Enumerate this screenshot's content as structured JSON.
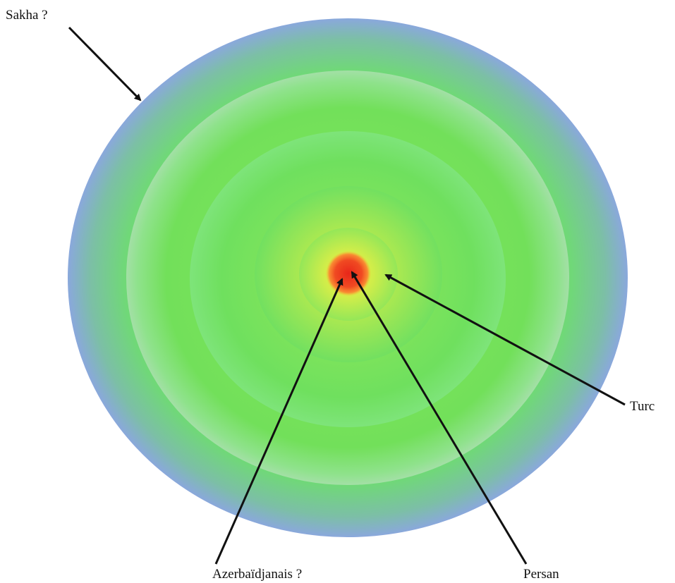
{
  "labels": {
    "sakha": "Sakha ?",
    "turc": "Turc",
    "azeri": "Azerbaïdjanais ?",
    "persan": "Persan"
  },
  "colors": {
    "core": "#e8261a",
    "core_glow": "#ff7a2e",
    "inner_yellow": "#e2f04a",
    "green": "#7ee85e",
    "outer_blue": "#8aa8dc",
    "arrow": "#111111",
    "background": "#ffffff"
  }
}
